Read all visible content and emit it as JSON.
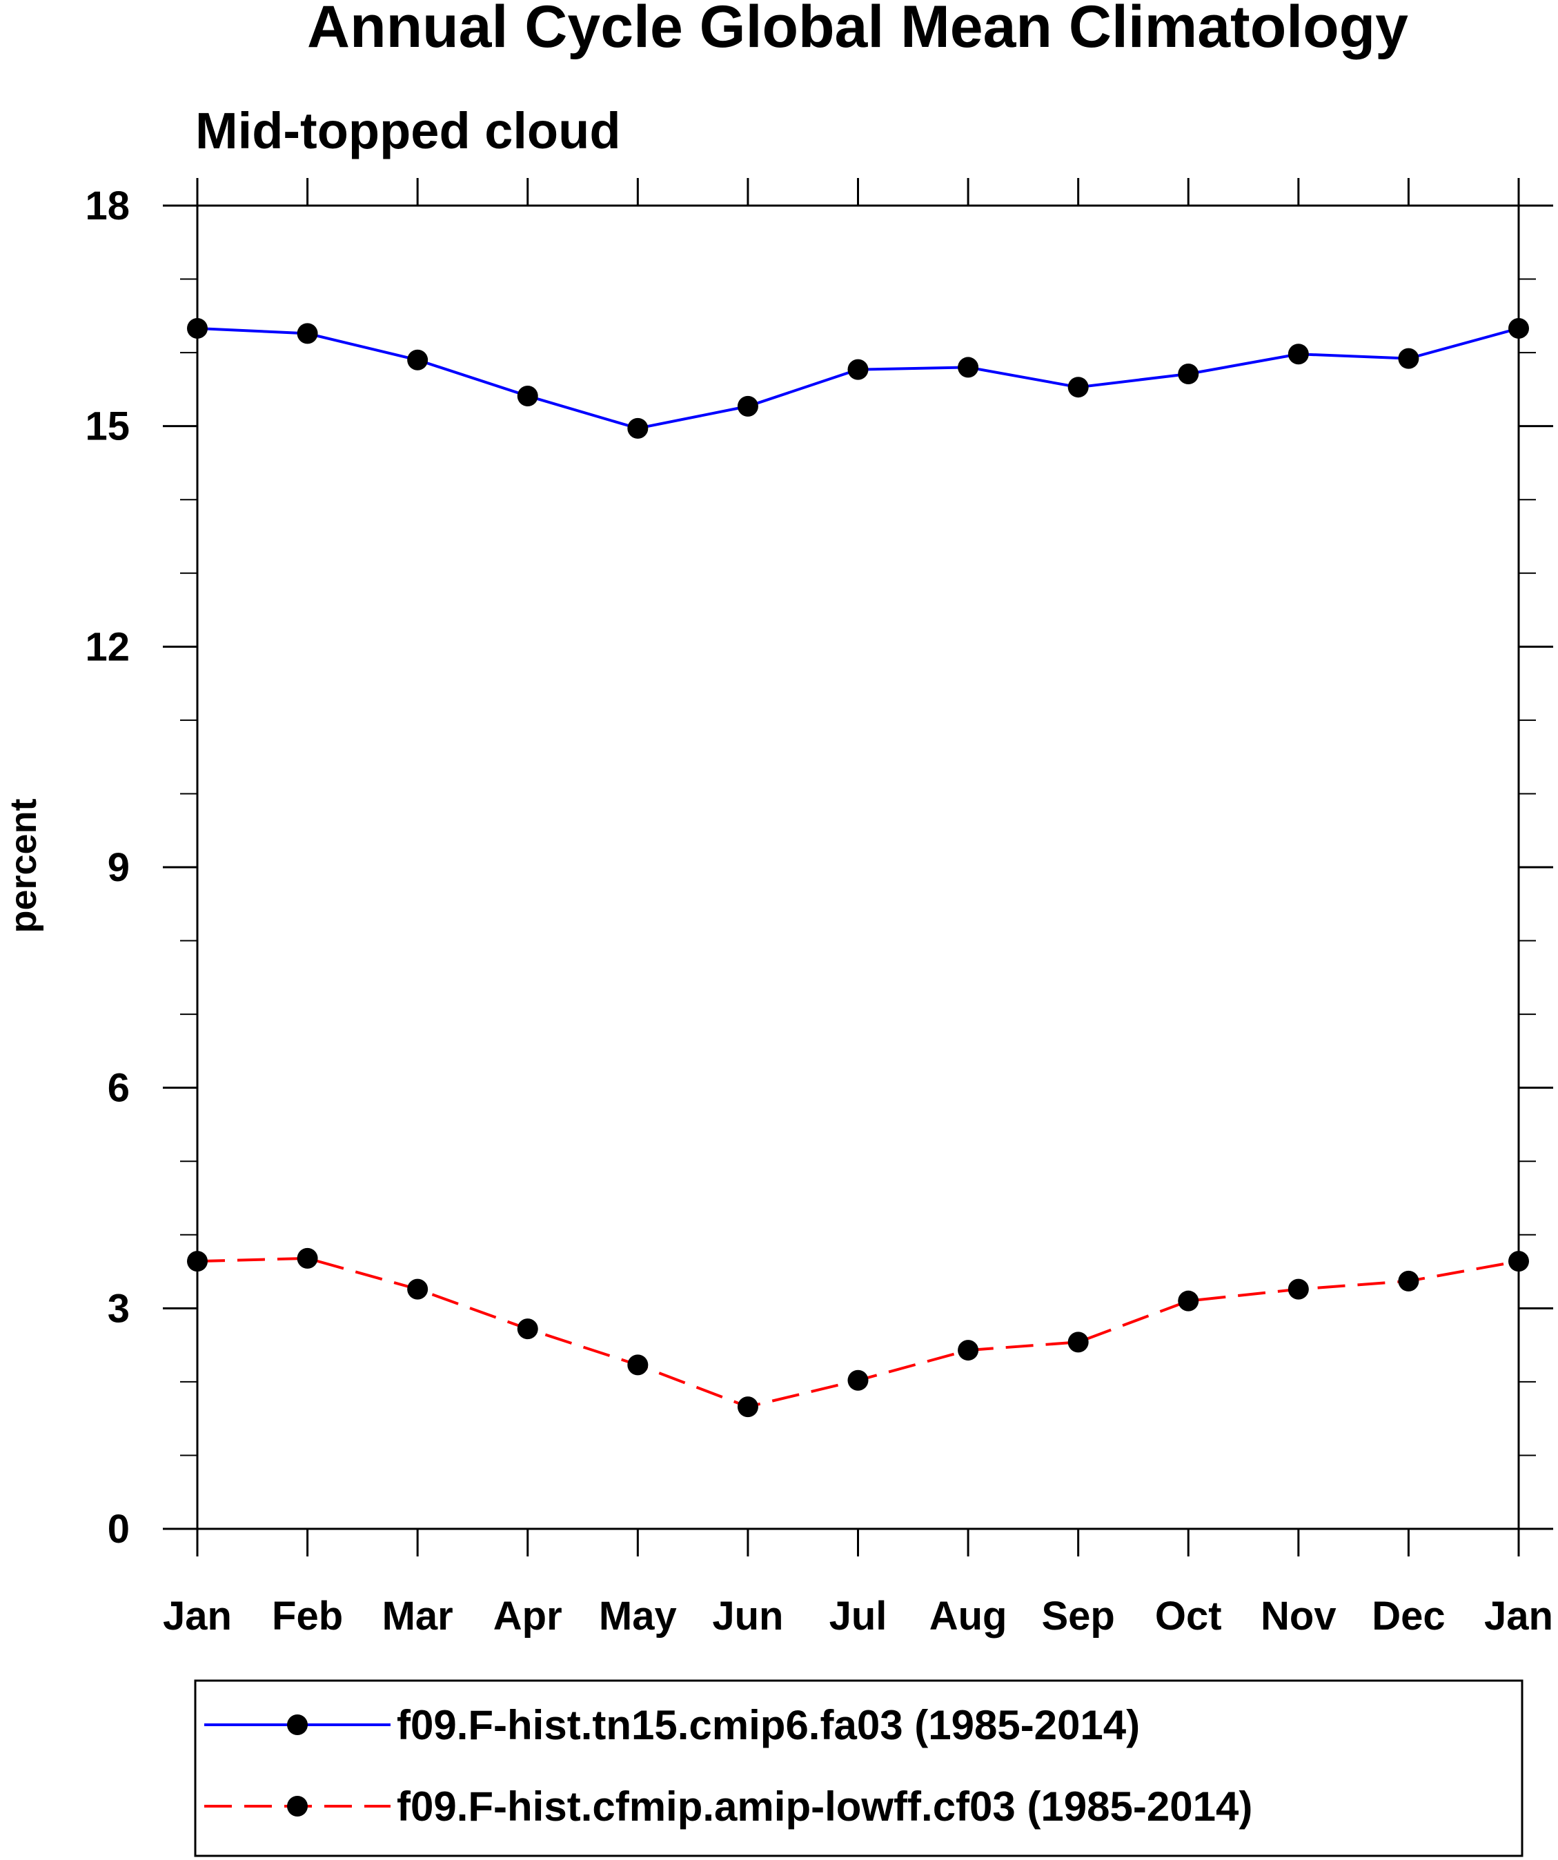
{
  "chart_data": {
    "type": "line",
    "title": "Annual Cycle Global Mean Climatology",
    "subtitle": "Mid-topped cloud",
    "xlabel": "",
    "ylabel": "percent",
    "categories": [
      "Jan",
      "Feb",
      "Mar",
      "Apr",
      "May",
      "Jun",
      "Jul",
      "Aug",
      "Sep",
      "Oct",
      "Nov",
      "Dec",
      "Jan"
    ],
    "ylim": [
      0,
      18
    ],
    "yticks": [
      0,
      3,
      6,
      9,
      12,
      15,
      18
    ],
    "ytick_labels": [
      "0",
      "3",
      "6",
      "9",
      "12",
      "15",
      "18"
    ],
    "grid": false,
    "legend_position": "bottom",
    "series": [
      {
        "name": "f09.F-hist.tn15.cmip6.fa03 (1985-2014)",
        "color": "#0000ff",
        "line_style": "solid",
        "marker": "filled-circle",
        "values": [
          16.33,
          16.26,
          15.9,
          15.41,
          14.97,
          15.27,
          15.77,
          15.8,
          15.53,
          15.71,
          15.98,
          15.92,
          16.33
        ]
      },
      {
        "name": "f09.F-hist.cfmip.amip-lowff.cf03 (1985-2014)",
        "color": "#ff0000",
        "line_style": "dashed",
        "marker": "filled-circle",
        "values": [
          3.64,
          3.68,
          3.26,
          2.72,
          2.23,
          1.66,
          2.02,
          2.43,
          2.54,
          3.1,
          3.26,
          3.37,
          3.64
        ]
      }
    ]
  }
}
